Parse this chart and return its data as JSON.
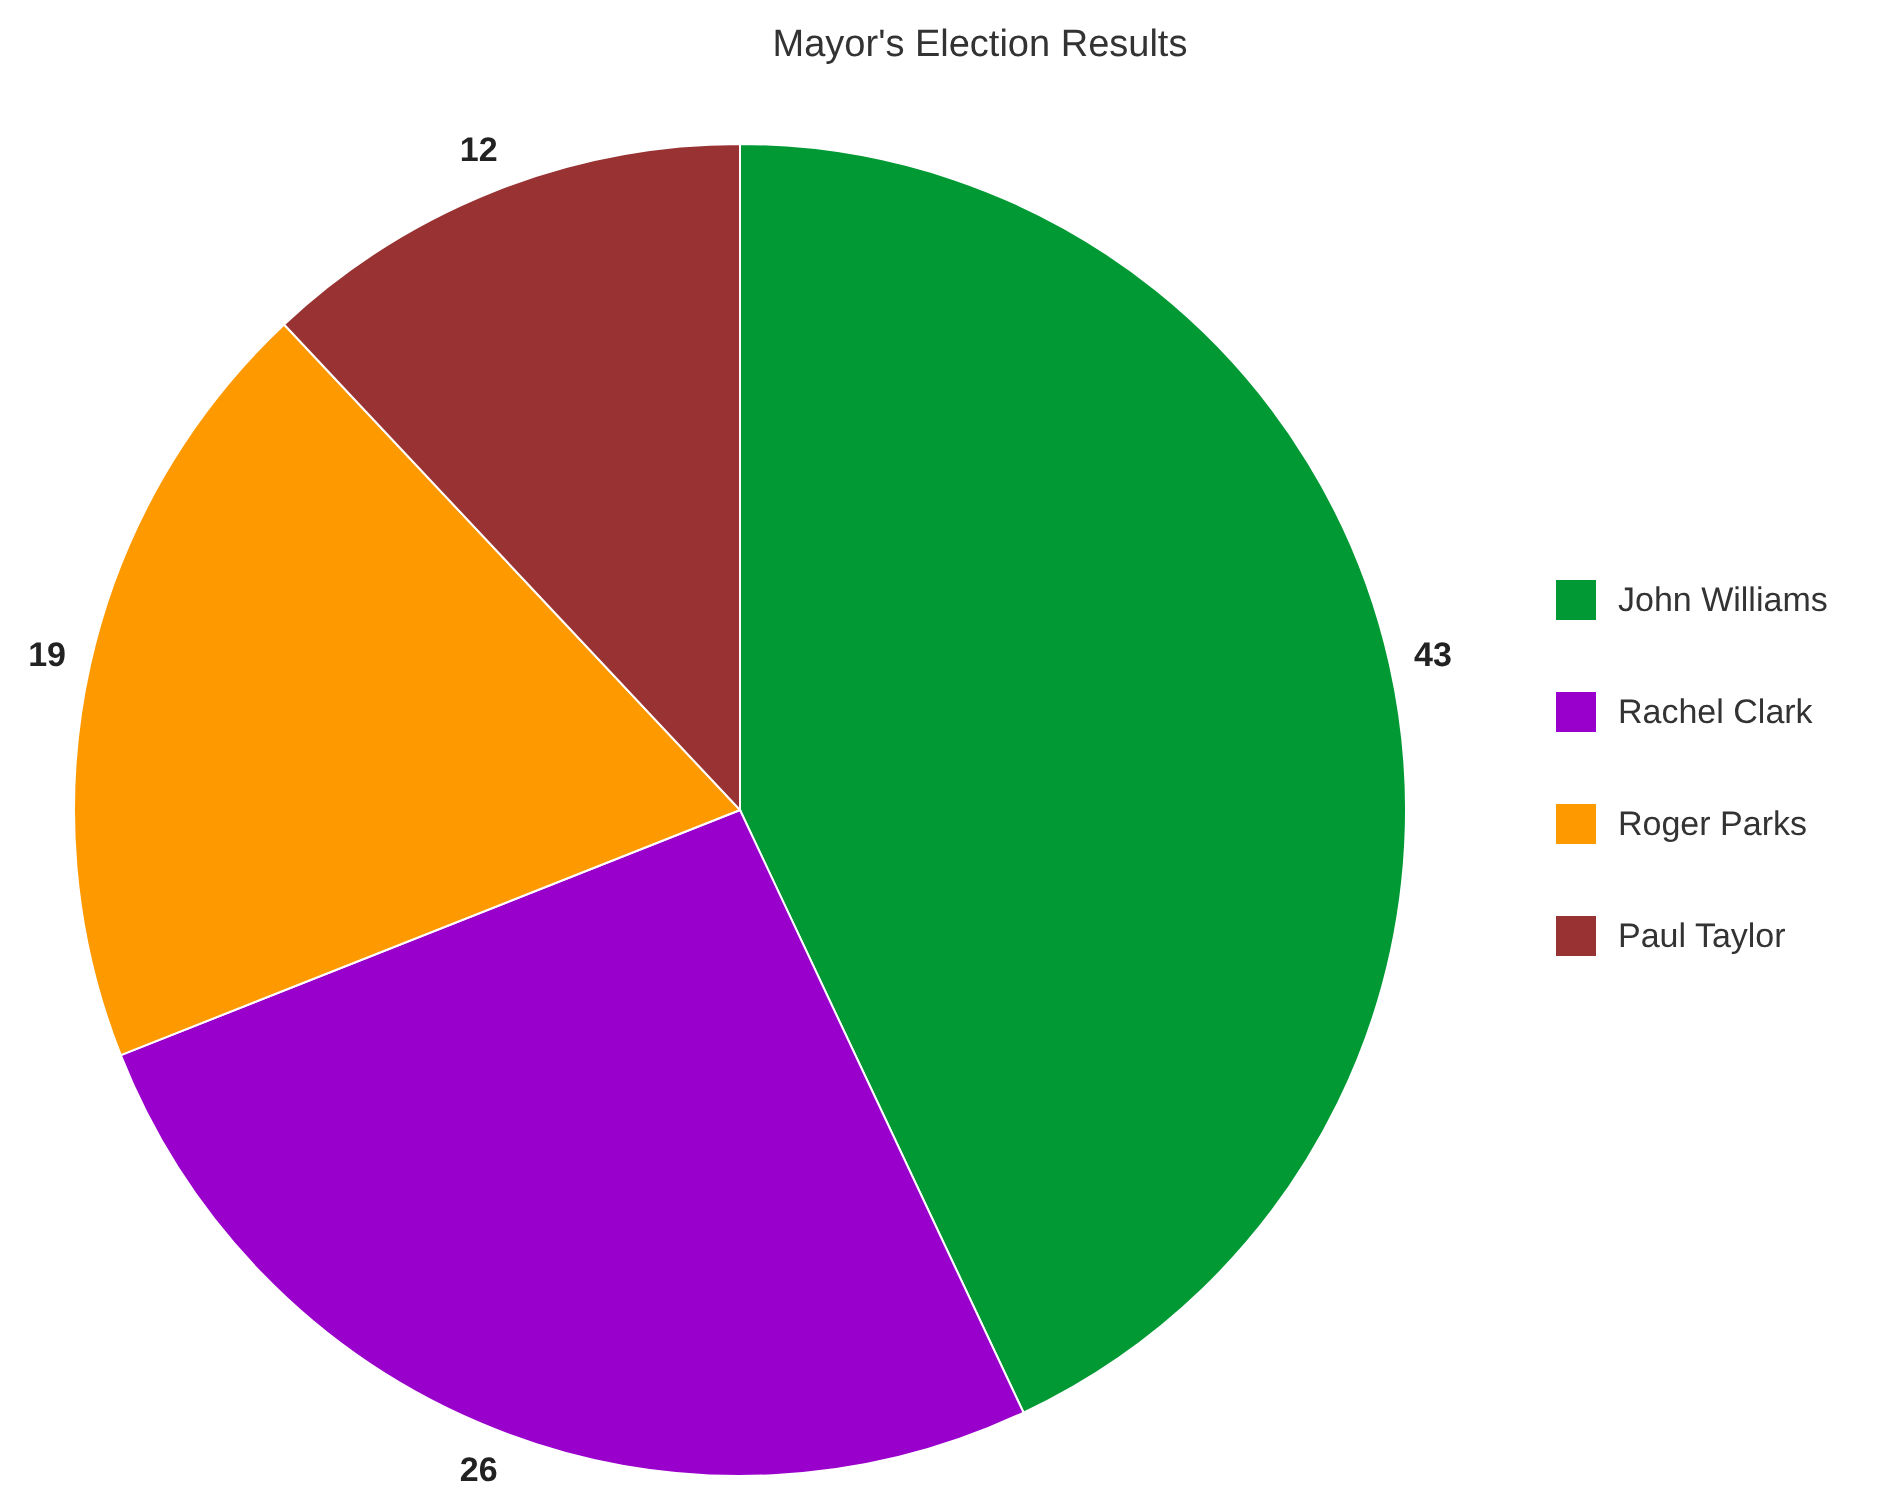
{
  "chart_data": {
    "type": "pie",
    "title": "Mayor's Election Results",
    "categories": [
      "John Williams",
      "Rachel Clark",
      "Roger Parks",
      "Paul Taylor"
    ],
    "values": [
      43,
      26,
      19,
      12
    ],
    "colors": [
      "#009933",
      "#9900cc",
      "#ff9900",
      "#993333"
    ],
    "data_labels": true,
    "legend": "right"
  }
}
